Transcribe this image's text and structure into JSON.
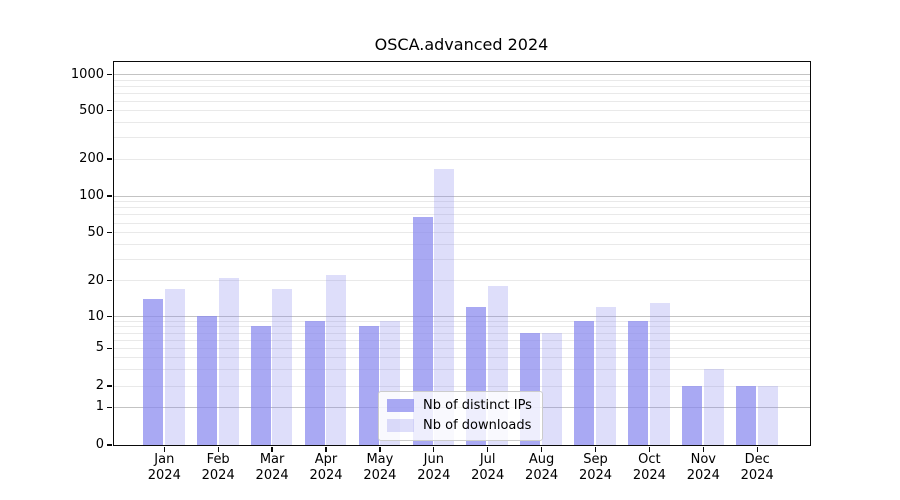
{
  "title": "OSCA.advanced 2024",
  "chart_data": {
    "type": "bar",
    "title": "OSCA.advanced 2024",
    "categories": [
      "Jan",
      "Feb",
      "Mar",
      "Apr",
      "May",
      "Jun",
      "Jul",
      "Aug",
      "Sep",
      "Oct",
      "Nov",
      "Dec"
    ],
    "year_label": "2024",
    "series": [
      {
        "name": "Nb of distinct IPs",
        "color": "#8888ee",
        "alpha": 0.72,
        "values": [
          14,
          10,
          8,
          9,
          8,
          67,
          12,
          7,
          9,
          9,
          2,
          2
        ]
      },
      {
        "name": "Nb of downloads",
        "color": "#8888ee",
        "alpha": 0.28,
        "values": [
          17,
          21,
          17,
          22,
          9,
          165,
          18,
          7,
          12,
          13,
          3,
          2
        ]
      }
    ],
    "yscale": "symlog",
    "yticks": [
      0,
      1,
      2,
      5,
      10,
      20,
      50,
      100,
      200,
      500,
      1000
    ],
    "ylim": [
      0,
      1270
    ],
    "grid": true,
    "legend_position": "inside lower-center",
    "colors": {
      "dark_bar_rendered": "#a9a9f3",
      "light_bar_rendered": "#dedefa",
      "major_grid": "#c3c3c3",
      "minor_grid": "#e9e9e9",
      "spine": "#0a0a0a",
      "legend_border": "#cccccc"
    }
  }
}
